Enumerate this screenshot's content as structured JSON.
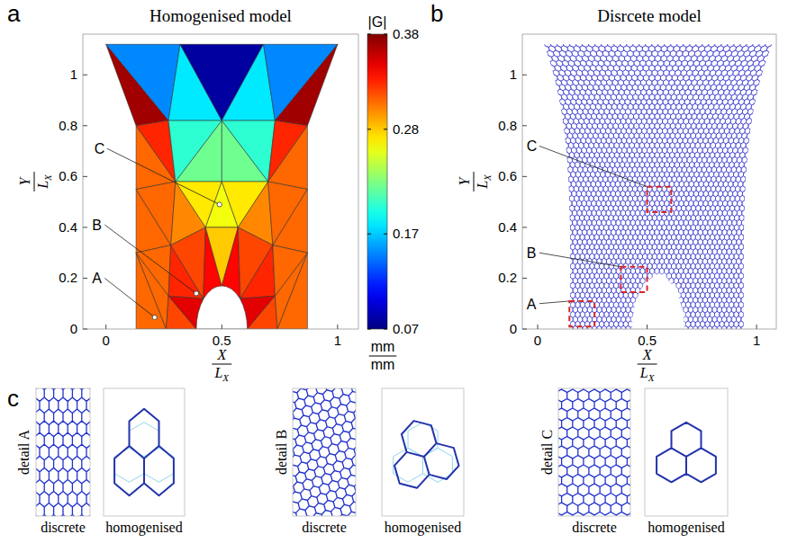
{
  "chart_data": [
    {
      "type": "mesh",
      "panel": "a",
      "title": "Homogenised model",
      "x_label": {
        "numerator": "X",
        "denominator": "L",
        "subscript": "X"
      },
      "y_label": {
        "numerator": "Y",
        "denominator": "L",
        "subscript": "X"
      },
      "xlim": [
        -0.1,
        1.09
      ],
      "ylim": [
        0,
        1.16
      ],
      "xticks": [
        0,
        0.5,
        1
      ],
      "yticks": [
        0,
        0.2,
        0.4,
        0.6,
        0.8,
        1
      ],
      "nodes": [
        [
          0,
          1.12
        ],
        [
          0.32,
          1.12
        ],
        [
          0.68,
          1.12
        ],
        [
          1,
          1.12
        ],
        [
          0.13,
          0.8
        ],
        [
          0.27,
          0.82
        ],
        [
          0.5,
          0.82
        ],
        [
          0.73,
          0.82
        ],
        [
          0.87,
          0.8
        ],
        [
          0.13,
          0.55
        ],
        [
          0.3,
          0.58
        ],
        [
          0.5,
          0.58
        ],
        [
          0.7,
          0.58
        ],
        [
          0.87,
          0.55
        ],
        [
          0.13,
          0.3
        ],
        [
          0.28,
          0.33
        ],
        [
          0.43,
          0.4
        ],
        [
          0.57,
          0.4
        ],
        [
          0.72,
          0.33
        ],
        [
          0.87,
          0.3
        ],
        [
          0.13,
          0
        ],
        [
          0.27,
          0.13
        ],
        [
          0.39,
          0
        ],
        [
          0.42,
          0.12
        ],
        [
          0.5,
          0.17
        ],
        [
          0.58,
          0.12
        ],
        [
          0.61,
          0
        ],
        [
          0.73,
          0.13
        ],
        [
          0.87,
          0
        ],
        [
          0.26,
          0
        ],
        [
          0.74,
          0
        ]
      ],
      "cells": [
        [
          0,
          4,
          5
        ],
        [
          0,
          5,
          1
        ],
        [
          1,
          5,
          6
        ],
        [
          1,
          6,
          2
        ],
        [
          2,
          6,
          7
        ],
        [
          2,
          7,
          3
        ],
        [
          3,
          7,
          8
        ],
        [
          4,
          9,
          10
        ],
        [
          4,
          10,
          5
        ],
        [
          5,
          10,
          6
        ],
        [
          6,
          10,
          11
        ],
        [
          6,
          11,
          12
        ],
        [
          6,
          12,
          7
        ],
        [
          7,
          12,
          8
        ],
        [
          8,
          12,
          13
        ],
        [
          9,
          14,
          15
        ],
        [
          9,
          15,
          10
        ],
        [
          10,
          15,
          16
        ],
        [
          10,
          16,
          11
        ],
        [
          11,
          16,
          17
        ],
        [
          11,
          17,
          12
        ],
        [
          12,
          17,
          18
        ],
        [
          12,
          18,
          13
        ],
        [
          13,
          18,
          19
        ],
        [
          14,
          20,
          29
        ],
        [
          14,
          29,
          21
        ],
        [
          14,
          21,
          15
        ],
        [
          29,
          22,
          21
        ],
        [
          21,
          22,
          23
        ],
        [
          15,
          21,
          23
        ],
        [
          15,
          23,
          16
        ],
        [
          16,
          23,
          24
        ],
        [
          16,
          24,
          17
        ],
        [
          17,
          24,
          25
        ],
        [
          17,
          25,
          18
        ],
        [
          18,
          25,
          27
        ],
        [
          25,
          26,
          27
        ],
        [
          27,
          26,
          30
        ],
        [
          19,
          27,
          30
        ],
        [
          19,
          30,
          28
        ],
        [
          18,
          27,
          19
        ]
      ],
      "values": [
        0.37,
        0.15,
        0.18,
        0.08,
        0.18,
        0.15,
        0.37,
        0.31,
        0.33,
        0.2,
        0.22,
        0.22,
        0.2,
        0.33,
        0.31,
        0.31,
        0.31,
        0.3,
        0.27,
        0.26,
        0.27,
        0.3,
        0.31,
        0.31,
        0.31,
        0.31,
        0.31,
        0.32,
        0.35,
        0.33,
        0.32,
        0.34,
        0.28,
        0.34,
        0.32,
        0.33,
        0.35,
        0.32,
        0.31,
        0.31,
        0.31
      ],
      "hole": {
        "center": [
          0.5,
          0
        ],
        "rx": 0.11,
        "ry": 0.17
      },
      "colorbar": {
        "label": "|G|",
        "range": [
          0.07,
          0.38
        ],
        "ticks": [
          0.07,
          0.17,
          0.28,
          0.38
        ],
        "unit": {
          "numerator": "mm",
          "denominator": "mm"
        }
      },
      "annotations": [
        {
          "text": "A",
          "point": [
            0.21,
            0.046
          ],
          "label_at": [
            -0.06,
            0.2
          ]
        },
        {
          "text": "B",
          "point": [
            0.39,
            0.14
          ],
          "label_at": [
            -0.06,
            0.41
          ]
        },
        {
          "text": "C",
          "point": [
            0.49,
            0.49
          ],
          "label_at": [
            -0.05,
            0.71
          ]
        }
      ]
    },
    {
      "type": "lattice",
      "panel": "b",
      "title": "Disrcete model",
      "x_label": {
        "numerator": "X",
        "denominator": "L",
        "subscript": "X"
      },
      "y_label": {
        "numerator": "Y",
        "denominator": "L",
        "subscript": "X"
      },
      "xlim": [
        -0.07,
        1.09
      ],
      "ylim": [
        0,
        1.16
      ],
      "xticks": [
        0,
        0.5,
        1
      ],
      "yticks": [
        0,
        0.2,
        0.4,
        0.6,
        0.8,
        1
      ],
      "color": "#4040d0",
      "domain": {
        "bottom": [
          0.15,
          0.94
        ],
        "top": [
          0.03,
          1.07
        ],
        "height": 1.12
      },
      "hole": {
        "center": [
          0.55,
          0
        ],
        "rx": 0.12,
        "ry": 0.22
      },
      "annotations": [
        {
          "text": "A",
          "box": [
            0.145,
            0.01,
            0.26,
            0.11
          ],
          "label_at": [
            -0.05,
            0.1
          ]
        },
        {
          "text": "B",
          "box": [
            0.38,
            0.145,
            0.5,
            0.245
          ],
          "label_at": [
            -0.05,
            0.3
          ]
        },
        {
          "text": "C",
          "box": [
            0.5,
            0.46,
            0.61,
            0.56
          ],
          "label_at": [
            -0.05,
            0.72
          ]
        }
      ]
    }
  ],
  "details": {
    "panel": "c",
    "items": [
      {
        "label": "detail A",
        "left": "discrete",
        "right": "homogenised"
      },
      {
        "label": "detail B",
        "left": "discrete",
        "right": "homogenised"
      },
      {
        "label": "detail C",
        "left": "discrete",
        "right": "homogenised"
      }
    ]
  }
}
